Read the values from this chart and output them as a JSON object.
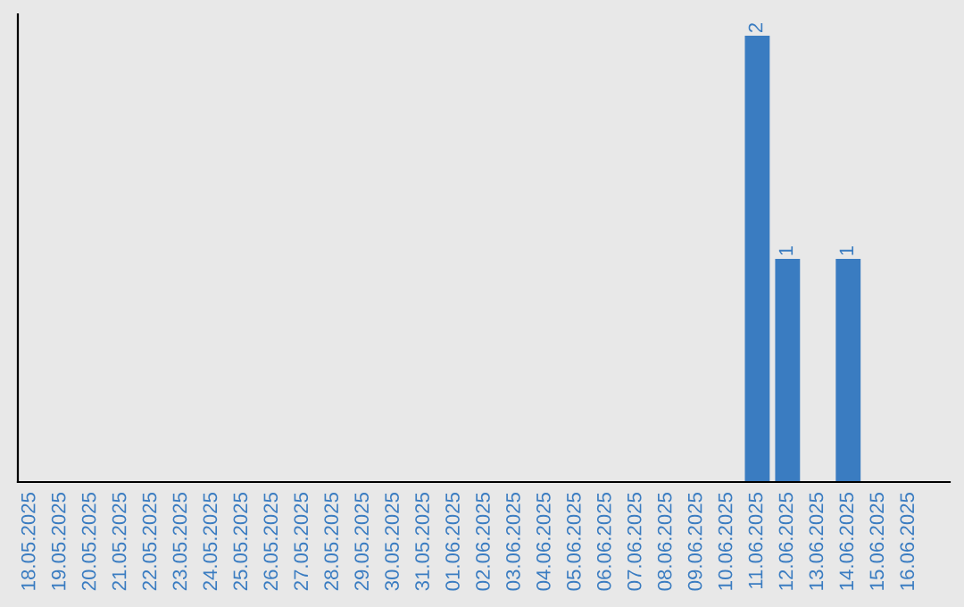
{
  "chart_data": {
    "type": "bar",
    "categories": [
      "18.05.2025",
      "19.05.2025",
      "20.05.2025",
      "21.05.2025",
      "22.05.2025",
      "23.05.2025",
      "24.05.2025",
      "25.05.2025",
      "26.05.2025",
      "27.05.2025",
      "28.05.2025",
      "29.05.2025",
      "30.05.2025",
      "31.05.2025",
      "01.06.2025",
      "02.06.2025",
      "03.06.2025",
      "04.06.2025",
      "05.06.2025",
      "06.06.2025",
      "07.06.2025",
      "08.06.2025",
      "09.06.2025",
      "10.06.2025",
      "11.06.2025",
      "12.06.2025",
      "13.06.2025",
      "14.06.2025",
      "15.06.2025",
      "16.06.2025"
    ],
    "values": [
      null,
      null,
      null,
      null,
      null,
      null,
      null,
      null,
      null,
      null,
      null,
      null,
      null,
      null,
      null,
      null,
      null,
      null,
      null,
      null,
      null,
      null,
      null,
      null,
      2,
      1,
      null,
      1,
      null,
      null
    ],
    "data_labels": true,
    "color": "#3a7cc1",
    "tick_labels": "x",
    "grid": false
  }
}
